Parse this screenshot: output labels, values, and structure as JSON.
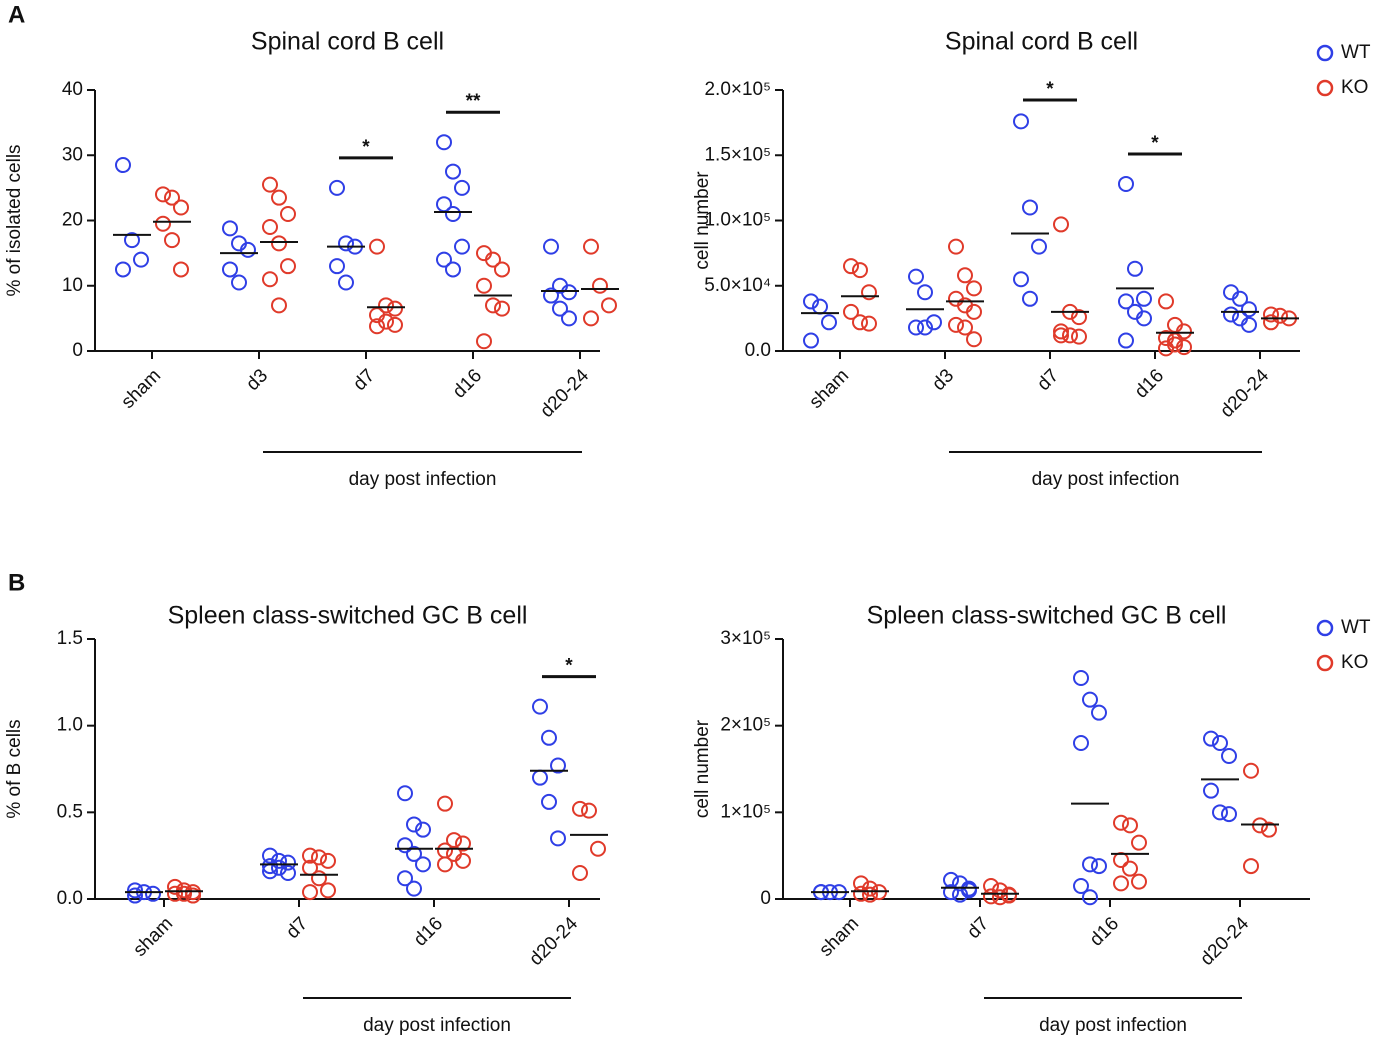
{
  "panel_labels": [
    "A",
    "B"
  ],
  "chart_data": [
    {
      "type": "scatter",
      "title": "Spinal cord B cell",
      "y_label": "% of isolated cells",
      "x_label": "day post infection",
      "categories": [
        "sham",
        "d3",
        "d7",
        "d16",
        "d20-24"
      ],
      "ylim": [
        0,
        40
      ],
      "yticks": [
        0,
        10,
        20,
        30,
        40
      ],
      "legend": false,
      "series": [
        {
          "name": "WT",
          "color": "#2f3fe6",
          "values": [
            [
              28.5,
              17,
              14,
              12.5
            ],
            [
              18.8,
              16.5,
              15.5,
              12.5,
              10.5
            ],
            [
              25,
              16.5,
              16,
              13,
              10.5
            ],
            [
              32,
              27.5,
              25,
              22.5,
              21,
              16,
              14,
              12.5
            ],
            [
              16,
              10,
              9,
              8.5,
              6.5,
              5
            ]
          ],
          "medians": [
            17.8,
            15,
            16,
            21.3,
            9.2
          ]
        },
        {
          "name": "KO",
          "color": "#e03a2a",
          "values": [
            [
              24,
              23.5,
              22,
              19.5,
              17,
              12.5
            ],
            [
              25.5,
              23.5,
              21,
              19,
              16.5,
              13,
              11,
              7
            ],
            [
              16,
              7,
              6.5,
              5.5,
              4.5,
              4,
              3.8
            ],
            [
              15,
              14,
              12.5,
              10,
              7,
              6.5,
              1.5
            ],
            [
              16,
              10,
              7,
              5
            ]
          ],
          "medians": [
            19.8,
            16.7,
            6.7,
            8.5,
            9.5
          ]
        }
      ],
      "annotations": [
        {
          "text": "*",
          "category": "d7"
        },
        {
          "text": "**",
          "category": "d16"
        }
      ]
    },
    {
      "type": "scatter",
      "title": "Spinal cord B cell",
      "y_label": "cell number",
      "x_label": "day post infection",
      "categories": [
        "sham",
        "d3",
        "d7",
        "d16",
        "d20-24"
      ],
      "ylim": [
        0,
        200000
      ],
      "yticks": [
        {
          "value": 0,
          "label": "0.0"
        },
        {
          "value": 50000,
          "label": "5.0×10⁴"
        },
        {
          "value": 100000,
          "label": "1.0×10⁵"
        },
        {
          "value": 150000,
          "label": "1.5×10⁵"
        },
        {
          "value": 200000,
          "label": "2.0×10⁵"
        }
      ],
      "legend": "top-right",
      "series": [
        {
          "name": "WT",
          "color": "#2f3fe6",
          "values": [
            [
              38000,
              34000,
              22000,
              8000
            ],
            [
              57000,
              45000,
              22000,
              18000,
              18000
            ],
            [
              176000,
              110000,
              80000,
              55000,
              40000
            ],
            [
              128000,
              63000,
              40000,
              38000,
              30000,
              25000,
              8000
            ],
            [
              45000,
              40000,
              32000,
              28000,
              25000,
              20000
            ]
          ],
          "medians": [
            29000,
            32000,
            90000,
            48000,
            30000
          ]
        },
        {
          "name": "KO",
          "color": "#e03a2a",
          "values": [
            [
              65000,
              62000,
              45000,
              30000,
              22000,
              21000
            ],
            [
              80000,
              58000,
              48000,
              40000,
              35000,
              30000,
              20000,
              18000,
              9000
            ],
            [
              97000,
              30000,
              26000,
              15000,
              12000,
              11000,
              12000
            ],
            [
              38000,
              20000,
              15000,
              10000,
              5000,
              3000,
              2000,
              8000
            ],
            [
              28000,
              27000,
              25000,
              22000
            ]
          ],
          "medians": [
            42000,
            38000,
            30000,
            14000,
            25000
          ]
        }
      ],
      "annotations": [
        {
          "text": "*",
          "category": "d7"
        },
        {
          "text": "*",
          "category": "d16"
        }
      ]
    },
    {
      "type": "scatter",
      "title": "Spleen class-switched GC B cell",
      "y_label": "% of B cells",
      "x_label": "day post infection",
      "categories": [
        "sham",
        "d7",
        "d16",
        "d20-24"
      ],
      "ylim": [
        0,
        1.5
      ],
      "yticks": [
        {
          "value": 0,
          "label": "0.0"
        },
        {
          "value": 0.5,
          "label": "0.5"
        },
        {
          "value": 1,
          "label": "1.0"
        },
        {
          "value": 1.5,
          "label": "1.5"
        }
      ],
      "legend": false,
      "series": [
        {
          "name": "WT",
          "color": "#2f3fe6",
          "values": [
            [
              0.05,
              0.04,
              0.03,
              0.02
            ],
            [
              0.25,
              0.22,
              0.21,
              0.19,
              0.18,
              0.15,
              0.16
            ],
            [
              0.61,
              0.43,
              0.4,
              0.31,
              0.26,
              0.2,
              0.12,
              0.06
            ],
            [
              1.11,
              0.93,
              0.77,
              0.7,
              0.56,
              0.35
            ]
          ],
          "medians": [
            0.04,
            0.2,
            0.29,
            0.74
          ]
        },
        {
          "name": "KO",
          "color": "#e03a2a",
          "values": [
            [
              0.07,
              0.05,
              0.04,
              0.03,
              0.03,
              0.02
            ],
            [
              0.25,
              0.24,
              0.22,
              0.18,
              0.12,
              0.05,
              0.04
            ],
            [
              0.55,
              0.34,
              0.32,
              0.28,
              0.26,
              0.22,
              0.2
            ],
            [
              0.52,
              0.51,
              0.29,
              0.15
            ]
          ],
          "medians": [
            0.045,
            0.14,
            0.29,
            0.37
          ]
        }
      ],
      "annotations": [
        {
          "text": "*",
          "category": "d20-24"
        }
      ]
    },
    {
      "type": "scatter",
      "title": "Spleen class-switched GC B cell",
      "y_label": "cell number",
      "x_label": "day post infection",
      "categories": [
        "sham",
        "d7",
        "d16",
        "d20-24"
      ],
      "ylim": [
        0,
        300000
      ],
      "yticks": [
        0,
        {
          "value": 100000,
          "label": "1×10⁵"
        },
        {
          "value": 200000,
          "label": "2×10⁵"
        },
        {
          "value": 300000,
          "label": "3×10⁵"
        }
      ],
      "legend": "top-right",
      "series": [
        {
          "name": "WT",
          "color": "#2f3fe6",
          "values": [
            [
              8000,
              8000,
              8000,
              8000
            ],
            [
              22000,
              18000,
              12000,
              8000,
              5000,
              10000
            ],
            [
              255000,
              230000,
              215000,
              180000,
              40000,
              38000,
              15000,
              2000
            ],
            [
              185000,
              180000,
              165000,
              125000,
              100000,
              98000
            ]
          ],
          "medians": [
            8000,
            13000,
            110000,
            138000
          ]
        },
        {
          "name": "KO",
          "color": "#e03a2a",
          "values": [
            [
              18000,
              12000,
              8000,
              6000,
              5000
            ],
            [
              15000,
              10000,
              5000,
              3000,
              2000,
              4000
            ],
            [
              88000,
              85000,
              65000,
              45000,
              35000,
              20000,
              18000
            ],
            [
              148000,
              85000,
              80000,
              38000
            ]
          ],
          "medians": [
            9000,
            6000,
            52000,
            86000
          ]
        }
      ],
      "annotations": []
    }
  ]
}
